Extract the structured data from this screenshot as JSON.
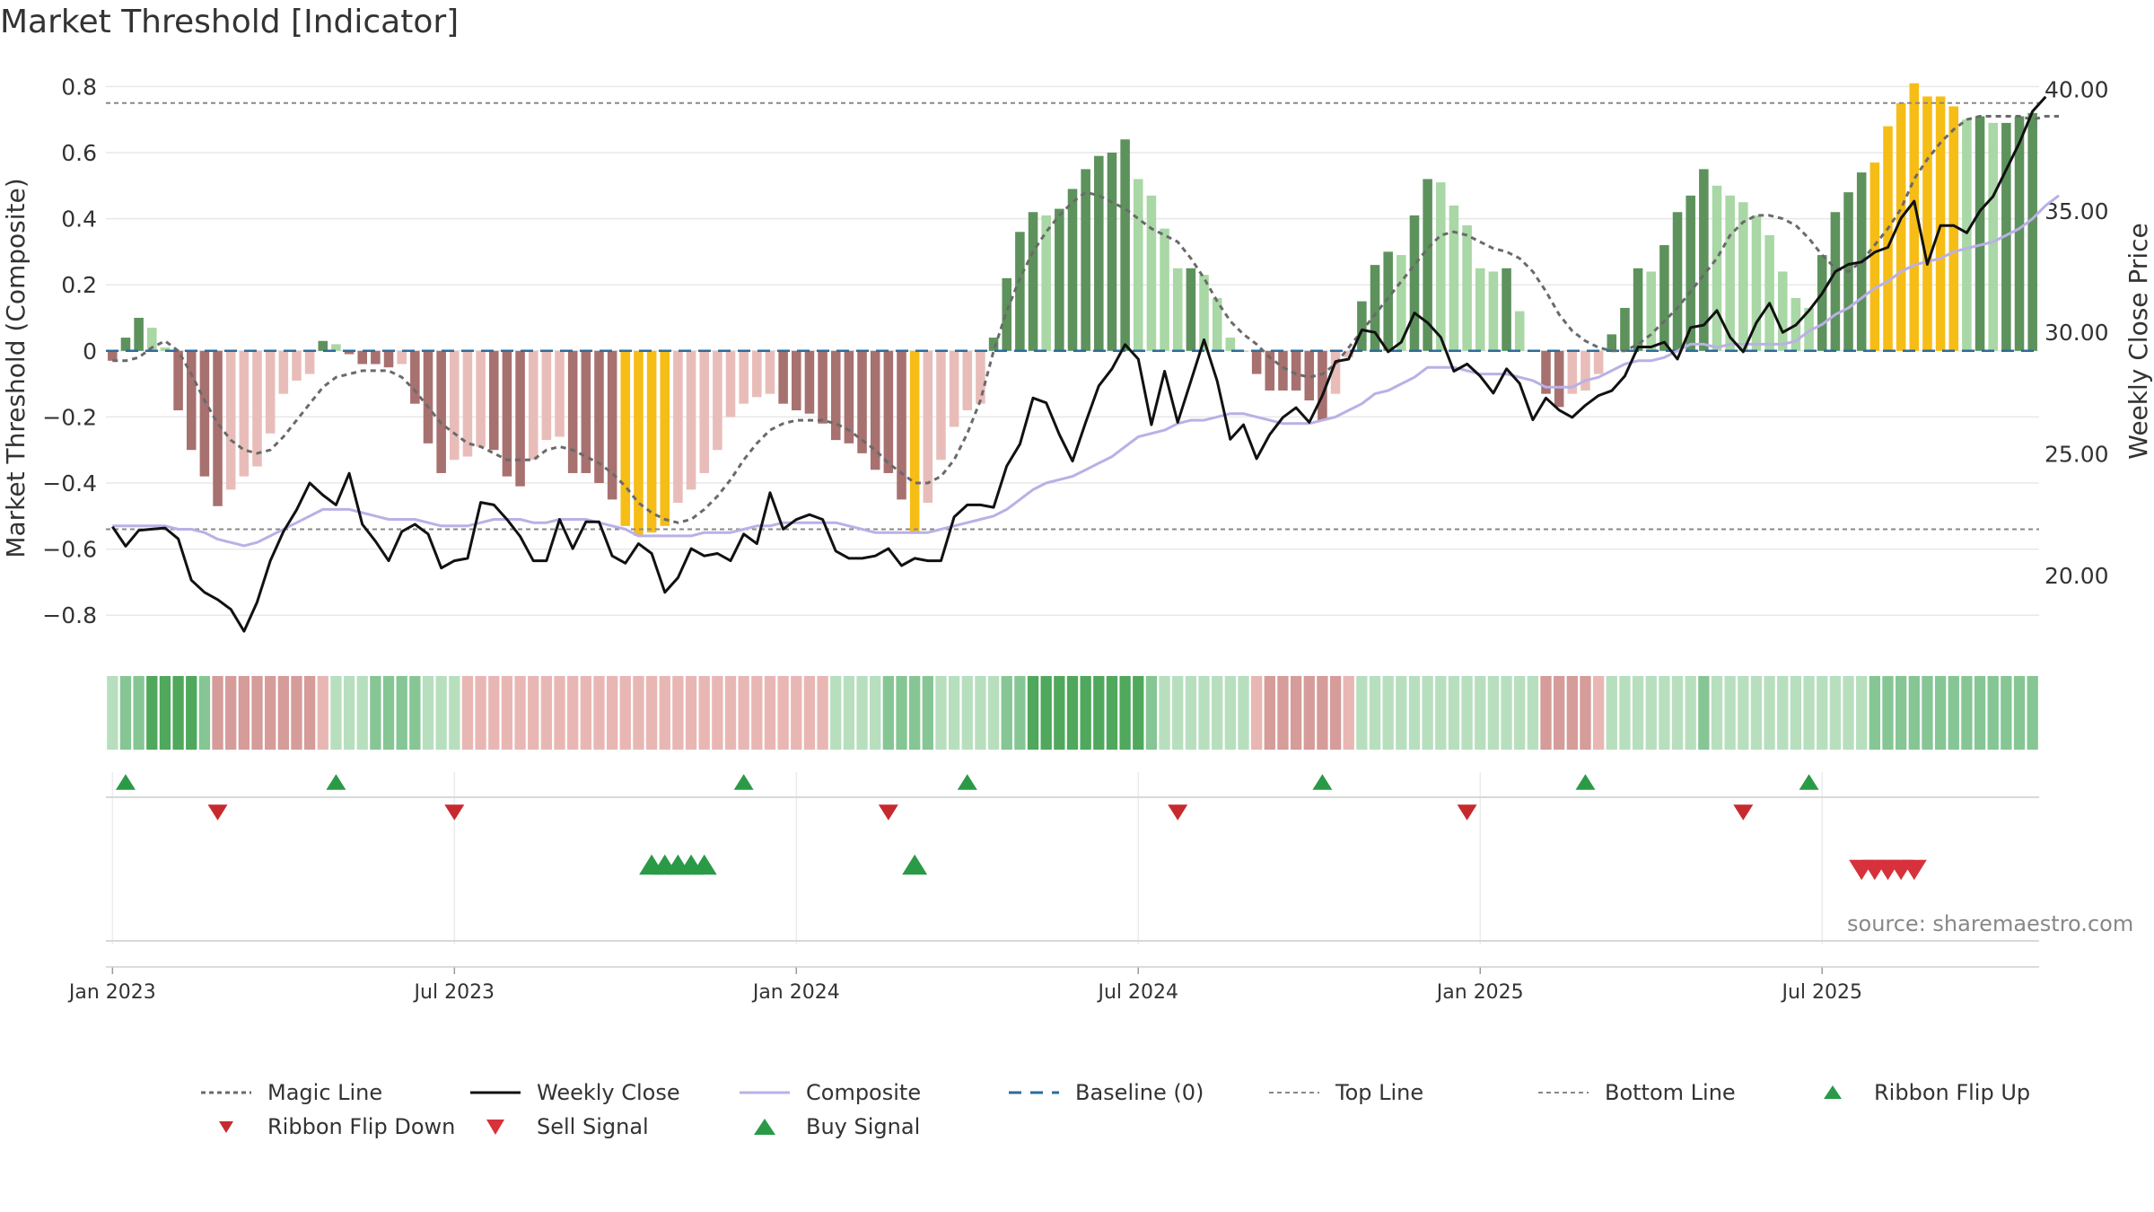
{
  "title": "Market Threshold [Indicator]",
  "source": "source: sharemaestro.com",
  "colors": {
    "bull_dark": "#5d925d",
    "bull_light": "#a9d7a5",
    "bear_dark": "#a77170",
    "bear_light": "#e8bdb9",
    "extreme": "#f6bd16",
    "close_line": "#111111",
    "composite_line": "#bab0e6",
    "magic_line": "#6a6a6a",
    "baseline": "#2b6c9c",
    "guide_line": "#888888",
    "buy": "#2a9a47",
    "sell": "#d7313b"
  },
  "chart_data": {
    "type": "bar",
    "x_axis": {
      "ticks": [
        "Jan 2023",
        "Jul 2023",
        "Jan 2024",
        "Jul 2024",
        "Jan 2025",
        "Jul 2025"
      ]
    },
    "y_left": {
      "label": "Market Threshold (Composite)",
      "range": [
        -0.9,
        0.85
      ],
      "ticks": [
        "0.8",
        "0.6",
        "0.4",
        "0.2",
        "0",
        "−0.2",
        "−0.4",
        "−0.6",
        "−0.8"
      ]
    },
    "y_right": {
      "label": "Weekly Close Price",
      "range": [
        17.0,
        40.8
      ],
      "ticks": [
        "40.00",
        "35.00",
        "30.00",
        "25.00",
        "20.00"
      ]
    },
    "top_line": 0.75,
    "bottom_line": -0.54,
    "bars": [
      -0.03,
      0.04,
      0.1,
      0.07,
      0.01,
      -0.18,
      -0.3,
      -0.38,
      -0.47,
      -0.42,
      -0.38,
      -0.35,
      -0.25,
      -0.13,
      -0.09,
      -0.07,
      0.03,
      0.02,
      -0.01,
      -0.04,
      -0.04,
      -0.05,
      -0.04,
      -0.16,
      -0.28,
      -0.37,
      -0.33,
      -0.32,
      -0.29,
      -0.3,
      -0.38,
      -0.41,
      -0.33,
      -0.27,
      -0.26,
      -0.37,
      -0.37,
      -0.4,
      -0.45,
      -0.53,
      -0.56,
      -0.55,
      -0.53,
      -0.46,
      -0.42,
      -0.37,
      -0.3,
      -0.2,
      -0.16,
      -0.14,
      -0.13,
      -0.16,
      -0.18,
      -0.19,
      -0.22,
      -0.27,
      -0.28,
      -0.31,
      -0.36,
      -0.37,
      -0.45,
      -0.55,
      -0.46,
      -0.33,
      -0.23,
      -0.18,
      -0.16,
      0.04,
      0.22,
      0.36,
      0.42,
      0.41,
      0.43,
      0.49,
      0.55,
      0.59,
      0.6,
      0.64,
      0.52,
      0.47,
      0.37,
      0.25,
      0.25,
      0.23,
      0.16,
      0.04,
      0.0,
      -0.07,
      -0.12,
      -0.12,
      -0.12,
      -0.15,
      -0.21,
      -0.13,
      -0.02,
      0.15,
      0.26,
      0.3,
      0.29,
      0.41,
      0.52,
      0.51,
      0.44,
      0.38,
      0.25,
      0.24,
      0.25,
      0.12,
      0.0,
      -0.13,
      -0.17,
      -0.13,
      -0.12,
      -0.07,
      0.05,
      0.13,
      0.25,
      0.24,
      0.32,
      0.42,
      0.47,
      0.55,
      0.5,
      0.47,
      0.45,
      0.41,
      0.35,
      0.24,
      0.16,
      0.13,
      0.29,
      0.42,
      0.48,
      0.54,
      0.57,
      0.68,
      0.75,
      0.81,
      0.77,
      0.77,
      0.74,
      0.7,
      0.71,
      0.69,
      0.69,
      0.71,
      0.72
    ],
    "close": [
      22.0,
      21.2,
      21.85,
      21.9,
      21.95,
      21.5,
      19.8,
      19.3,
      19.0,
      18.6,
      17.7,
      18.9,
      20.6,
      21.8,
      22.7,
      23.8,
      23.3,
      22.9,
      24.2,
      22.1,
      21.4,
      20.6,
      21.8,
      22.1,
      21.7,
      20.3,
      20.6,
      20.7,
      23.0,
      22.9,
      22.3,
      21.6,
      20.6,
      20.6,
      22.3,
      21.1,
      22.2,
      22.2,
      20.8,
      20.5,
      21.3,
      20.9,
      19.3,
      19.9,
      21.1,
      20.8,
      20.9,
      20.6,
      21.7,
      21.3,
      23.4,
      21.9,
      22.3,
      22.5,
      22.3,
      21.0,
      20.7,
      20.7,
      20.8,
      21.1,
      20.4,
      20.7,
      20.6,
      20.6,
      22.4,
      22.9,
      22.9,
      22.8,
      24.5,
      25.4,
      27.3,
      27.1,
      25.8,
      24.7,
      26.3,
      27.8,
      28.5,
      29.5,
      28.9,
      26.2,
      28.4,
      26.3,
      28.0,
      29.7,
      28.0,
      25.6,
      26.2,
      24.8,
      25.8,
      26.5,
      26.9,
      26.3,
      27.4,
      28.8,
      28.9,
      30.1,
      30.0,
      29.2,
      29.6,
      30.8,
      30.4,
      29.8,
      28.4,
      28.7,
      28.2,
      27.5,
      28.5,
      27.9,
      26.4,
      27.3,
      26.8,
      26.5,
      27.0,
      27.4,
      27.6,
      28.2,
      29.4,
      29.4,
      29.6,
      28.9,
      30.2,
      30.3,
      30.9,
      29.8,
      29.2,
      30.4,
      31.2,
      30.0,
      30.3,
      30.9,
      31.6,
      32.5,
      32.8,
      32.9,
      33.3,
      33.5,
      34.7,
      35.4,
      32.8,
      34.4,
      34.4,
      34.1,
      35.0,
      35.6,
      36.7,
      37.8,
      39.1,
      39.7
    ],
    "composite": [
      -0.53,
      -0.53,
      -0.53,
      -0.53,
      -0.53,
      -0.54,
      -0.54,
      -0.55,
      -0.57,
      -0.58,
      -0.59,
      -0.58,
      -0.56,
      -0.54,
      -0.52,
      -0.5,
      -0.48,
      -0.48,
      -0.48,
      -0.49,
      -0.5,
      -0.51,
      -0.51,
      -0.51,
      -0.52,
      -0.53,
      -0.53,
      -0.53,
      -0.52,
      -0.51,
      -0.51,
      -0.51,
      -0.52,
      -0.52,
      -0.51,
      -0.51,
      -0.51,
      -0.52,
      -0.53,
      -0.54,
      -0.56,
      -0.56,
      -0.56,
      -0.56,
      -0.56,
      -0.55,
      -0.55,
      -0.55,
      -0.54,
      -0.53,
      -0.53,
      -0.52,
      -0.52,
      -0.52,
      -0.52,
      -0.52,
      -0.53,
      -0.54,
      -0.55,
      -0.55,
      -0.55,
      -0.55,
      -0.55,
      -0.54,
      -0.53,
      -0.52,
      -0.51,
      -0.5,
      -0.48,
      -0.45,
      -0.42,
      -0.4,
      -0.39,
      -0.38,
      -0.36,
      -0.34,
      -0.32,
      -0.29,
      -0.26,
      -0.25,
      -0.24,
      -0.22,
      -0.21,
      -0.21,
      -0.2,
      -0.19,
      -0.19,
      -0.2,
      -0.21,
      -0.22,
      -0.22,
      -0.22,
      -0.21,
      -0.2,
      -0.18,
      -0.16,
      -0.13,
      -0.12,
      -0.1,
      -0.08,
      -0.05,
      -0.05,
      -0.05,
      -0.06,
      -0.07,
      -0.07,
      -0.07,
      -0.08,
      -0.09,
      -0.11,
      -0.11,
      -0.11,
      -0.09,
      -0.08,
      -0.06,
      -0.04,
      -0.03,
      -0.03,
      -0.02,
      0.0,
      0.02,
      0.02,
      0.01,
      0.02,
      0.02,
      0.02,
      0.02,
      0.02,
      0.03,
      0.06,
      0.08,
      0.11,
      0.13,
      0.16,
      0.19,
      0.21,
      0.24,
      0.26,
      0.27,
      0.28,
      0.3,
      0.31,
      0.32,
      0.33,
      0.35,
      0.37,
      0.4,
      0.44,
      0.47
    ],
    "magic_line": [
      -0.03,
      -0.03,
      -0.02,
      0.01,
      0.03,
      0.0,
      -0.07,
      -0.15,
      -0.22,
      -0.27,
      -0.3,
      -0.31,
      -0.3,
      -0.26,
      -0.21,
      -0.16,
      -0.11,
      -0.08,
      -0.07,
      -0.06,
      -0.06,
      -0.06,
      -0.08,
      -0.12,
      -0.17,
      -0.22,
      -0.25,
      -0.28,
      -0.29,
      -0.31,
      -0.33,
      -0.33,
      -0.33,
      -0.3,
      -0.29,
      -0.3,
      -0.32,
      -0.34,
      -0.37,
      -0.41,
      -0.46,
      -0.49,
      -0.51,
      -0.52,
      -0.51,
      -0.48,
      -0.44,
      -0.39,
      -0.33,
      -0.28,
      -0.24,
      -0.22,
      -0.21,
      -0.21,
      -0.21,
      -0.22,
      -0.24,
      -0.27,
      -0.3,
      -0.34,
      -0.37,
      -0.4,
      -0.4,
      -0.38,
      -0.33,
      -0.25,
      -0.15,
      0.0,
      0.12,
      0.22,
      0.3,
      0.36,
      0.41,
      0.45,
      0.48,
      0.47,
      0.45,
      0.43,
      0.4,
      0.37,
      0.35,
      0.33,
      0.28,
      0.22,
      0.15,
      0.09,
      0.05,
      0.02,
      -0.02,
      -0.05,
      -0.07,
      -0.08,
      -0.07,
      -0.04,
      0.01,
      0.06,
      0.11,
      0.16,
      0.21,
      0.26,
      0.31,
      0.35,
      0.36,
      0.35,
      0.33,
      0.31,
      0.3,
      0.28,
      0.24,
      0.18,
      0.11,
      0.06,
      0.03,
      0.01,
      0.0,
      0.0,
      0.02,
      0.05,
      0.09,
      0.13,
      0.18,
      0.23,
      0.28,
      0.35,
      0.39,
      0.41,
      0.41,
      0.4,
      0.38,
      0.34,
      0.29,
      0.25,
      0.24,
      0.27,
      0.32,
      0.37,
      0.43,
      0.52,
      0.58,
      0.63,
      0.67,
      0.7,
      0.71,
      0.71,
      0.71,
      0.71,
      0.7,
      0.71,
      0.71
    ],
    "ribbon_levels": [
      1,
      2,
      2,
      3,
      3,
      3,
      3,
      2,
      -2,
      -2,
      -2,
      -2,
      -2,
      -2,
      -2,
      -2,
      -1,
      1,
      1,
      1,
      2,
      2,
      2,
      2,
      1,
      1,
      1,
      -1,
      -1,
      -1,
      -1,
      -1,
      -1,
      -1,
      -1,
      -1,
      -1,
      -1,
      -1,
      -1,
      -1,
      -1,
      -1,
      -1,
      -1,
      -1,
      -1,
      -1,
      -1,
      -1,
      -1,
      -1,
      -1,
      -1,
      -1,
      0,
      1,
      1,
      1,
      2,
      2,
      2,
      2,
      1,
      1,
      1,
      1,
      1,
      1,
      1,
      -1,
      -1,
      -1,
      -1,
      -1,
      -1,
      -1,
      -1,
      -1,
      -1,
      0,
      0,
      0,
      0,
      0,
      0,
      0,
      0,
      0,
      0,
      0,
      0,
      0,
      0,
      0,
      0,
      0,
      0,
      0,
      0,
      0,
      0,
      0,
      0,
      0,
      0,
      0,
      0,
      0,
      0,
      0,
      0,
      0,
      0,
      0,
      0,
      0,
      0,
      0,
      0,
      0,
      0,
      0,
      0,
      0,
      0,
      0,
      0,
      0,
      0,
      0,
      0,
      0,
      0,
      0,
      0,
      0,
      0,
      0,
      0,
      0,
      0,
      0,
      0,
      0,
      0,
      0,
      0,
      0,
      0,
      0
    ],
    "ribbon_flip_up": [
      1,
      17,
      48,
      65,
      92,
      112,
      129
    ],
    "ribbon_flip_down": [
      8,
      26,
      59,
      81,
      103,
      124
    ],
    "buy_signals": [
      41,
      42,
      43,
      44,
      45,
      61
    ],
    "sell_signals": [
      133,
      134,
      135,
      136,
      137
    ],
    "legend": [
      {
        "id": "magic",
        "label": "Magic Line"
      },
      {
        "id": "close",
        "label": "Weekly Close"
      },
      {
        "id": "composite",
        "label": "Composite"
      },
      {
        "id": "baseline",
        "label": "Baseline (0)"
      },
      {
        "id": "top",
        "label": "Top Line"
      },
      {
        "id": "bottom",
        "label": "Bottom Line"
      },
      {
        "id": "flipup",
        "label": "Ribbon Flip Up"
      },
      {
        "id": "flipdown",
        "label": "Ribbon Flip Down"
      },
      {
        "id": "sell",
        "label": "Sell Signal"
      },
      {
        "id": "buy",
        "label": "Buy Signal"
      }
    ]
  }
}
